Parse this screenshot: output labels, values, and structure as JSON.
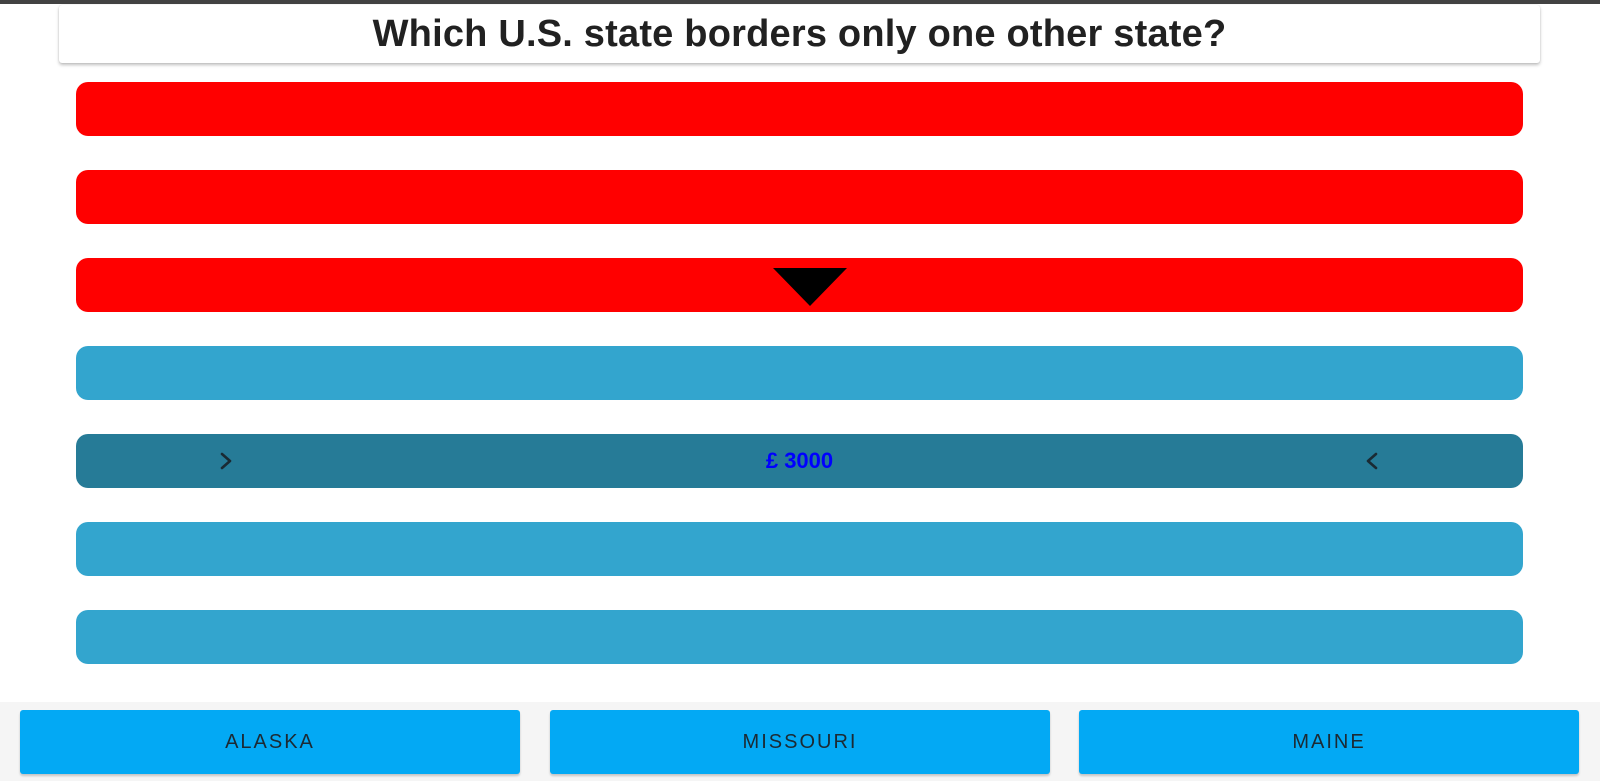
{
  "question": {
    "text": "Which U.S. state borders only one other state?"
  },
  "ladder": {
    "rungs": [
      {
        "status": "red",
        "label": ""
      },
      {
        "status": "red",
        "label": ""
      },
      {
        "status": "red",
        "label": ""
      },
      {
        "status": "blue",
        "label": ""
      },
      {
        "status": "current",
        "label": "£ 3000"
      },
      {
        "status": "blue",
        "label": ""
      },
      {
        "status": "blue",
        "label": ""
      }
    ],
    "colors": {
      "red": "#ff0000",
      "blue": "#33a5ce",
      "current": "#267b97",
      "value_text": "#0000ff"
    }
  },
  "answers": [
    {
      "label": "Alaska"
    },
    {
      "label": "Missouri"
    },
    {
      "label": "Maine"
    }
  ],
  "icons": {
    "current_left": "chevron-right-icon",
    "current_right": "chevron-left-icon",
    "pointer": "triangle-down-icon"
  }
}
